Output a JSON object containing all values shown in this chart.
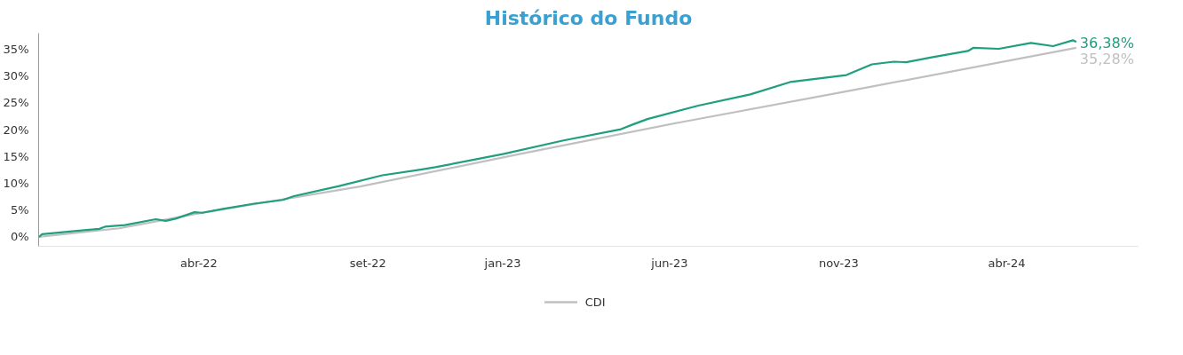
{
  "chart_data": {
    "type": "line",
    "title": "Histórico do Fundo",
    "xlim": [
      "2021-11-21",
      "2024-08-12"
    ],
    "xticks": [
      {
        "value": "2022-04-15",
        "label": "abr-22"
      },
      {
        "value": "2022-09-15",
        "label": "set-22"
      },
      {
        "value": "2023-01-15",
        "label": "jan-23"
      },
      {
        "value": "2023-06-15",
        "label": "jun-23"
      },
      {
        "value": "2023-11-15",
        "label": "nov-23"
      },
      {
        "value": "2024-04-15",
        "label": "abr-24"
      }
    ],
    "ylim": [
      -1.75,
      38
    ],
    "yticks": [
      {
        "value": 0,
        "label": "0%"
      },
      {
        "value": 5,
        "label": "5%"
      },
      {
        "value": 10,
        "label": "10%"
      },
      {
        "value": 15,
        "label": "15%"
      },
      {
        "value": 20,
        "label": "20%"
      },
      {
        "value": 25,
        "label": "25%"
      },
      {
        "value": 30,
        "label": "30%"
      },
      {
        "value": 35,
        "label": "35%"
      }
    ],
    "legend": "bottom",
    "line_style": "solid",
    "series": [
      {
        "name": "CDI",
        "color": "#c0c0c0",
        "x": [
          "2021-11-21",
          "2022-02-02",
          "2022-04-15",
          "2022-09-08",
          "2023-01-31",
          "2023-06-25",
          "2023-11-18",
          "2024-06-17"
        ],
        "values": [
          0,
          1.6,
          4.4,
          9.4,
          15.5,
          21.4,
          27.0,
          35.28
        ],
        "value_labels": [
          null,
          null,
          null,
          null,
          null,
          null,
          null,
          "35,28%"
        ]
      },
      {
        "color": "#1f9e80",
        "x": [
          "2021-11-21",
          "2021-11-22",
          "2021-11-24",
          "2021-12-30",
          "2022-01-15",
          "2022-01-20",
          "2022-02-07",
          "2022-03-07",
          "2022-03-16",
          "2022-03-25",
          "2022-04-11",
          "2022-04-18",
          "2022-05-09",
          "2022-06-04",
          "2022-06-30",
          "2022-07-10",
          "2022-08-20",
          "2022-09-28",
          "2022-11-03",
          "2022-11-15",
          "2023-01-16",
          "2023-03-11",
          "2023-05-02",
          "2023-05-13",
          "2023-05-26",
          "2023-07-11",
          "2023-08-27",
          "2023-10-02",
          "2023-11-22",
          "2023-12-15",
          "2024-01-04",
          "2024-01-15",
          "2024-02-07",
          "2024-03-11",
          "2024-03-16",
          "2024-04-08",
          "2024-05-07",
          "2024-05-27",
          "2024-06-14",
          "2024-06-17"
        ],
        "values": [
          0,
          0.1,
          0.5,
          1.2,
          1.5,
          1.9,
          2.2,
          3.3,
          3.0,
          3.4,
          4.6,
          4.5,
          5.3,
          6.2,
          6.9,
          7.6,
          9.5,
          11.5,
          12.6,
          13.0,
          15.5,
          18.0,
          20.1,
          21.0,
          22.0,
          24.5,
          26.6,
          28.9,
          30.2,
          32.2,
          32.7,
          32.6,
          33.5,
          34.7,
          35.3,
          35.1,
          36.2,
          35.6,
          36.7,
          36.38
        ],
        "value_labels": [
          null,
          null,
          null,
          null,
          null,
          null,
          null,
          null,
          null,
          null,
          null,
          null,
          null,
          null,
          null,
          null,
          null,
          null,
          null,
          null,
          null,
          null,
          null,
          null,
          null,
          null,
          null,
          null,
          null,
          null,
          null,
          null,
          null,
          null,
          null,
          null,
          null,
          null,
          null,
          "36,38%"
        ]
      }
    ]
  }
}
